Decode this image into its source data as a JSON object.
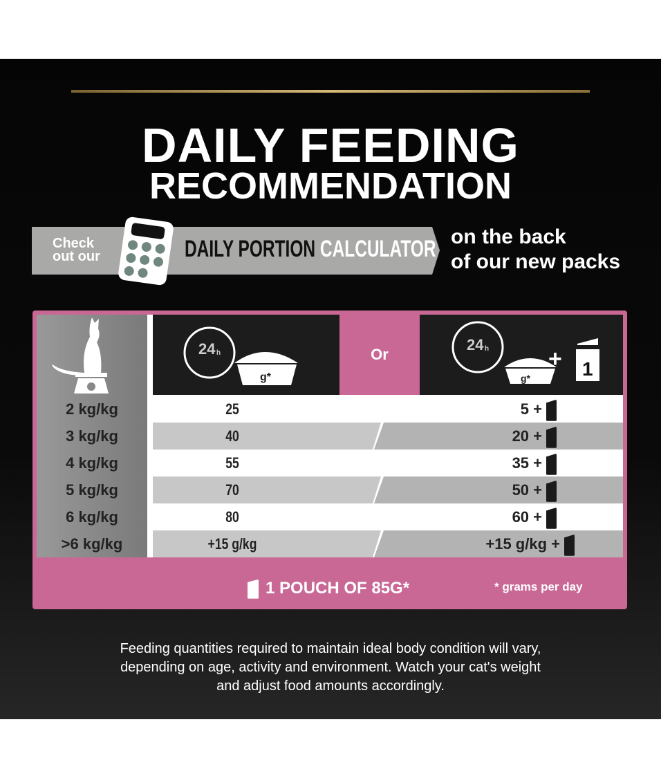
{
  "title": {
    "line1": "DAILY FEEDING",
    "line2": "RECOMMENDATION"
  },
  "banner": {
    "check": "Check",
    "out_our": "out our",
    "daily_portion": "DAILY PORTION",
    "calculator": "CALCULATOR",
    "on_the_back": "on the back",
    "of_packs": "of our new packs",
    "icon": "calculator-icon"
  },
  "table": {
    "header": {
      "or": "Or",
      "icon_left": "24h-clock-bowl-icon",
      "icon_right": "24h-clock-bowl-plus-pouch-icon",
      "grams_label": "g*",
      "hours": "24",
      "h": "h",
      "pouch_count": "1",
      "plus": "+"
    },
    "rows": [
      {
        "weight": "2 kg/kg",
        "dry": "25",
        "combo": "5 +"
      },
      {
        "weight": "3 kg/kg",
        "dry": "40",
        "combo": "20 +"
      },
      {
        "weight": "4 kg/kg",
        "dry": "55",
        "combo": "35 +"
      },
      {
        "weight": "5 kg/kg",
        "dry": "70",
        "combo": "50 +"
      },
      {
        "weight": "6 kg/kg",
        "dry": "80",
        "combo": "60 +"
      },
      {
        "weight": ">6  kg/kg",
        "dry": "+15 g/kg",
        "combo": "+15 g/kg +"
      }
    ],
    "footer": {
      "pouch": "1 POUCH OF 85G*",
      "grams": "* grams per day"
    },
    "colors": {
      "accent": "#c96795"
    }
  },
  "note": {
    "line1": "Feeding quantities required to maintain ideal body condition will vary,",
    "line2": "depending on age, activity and environment. Watch your cat's weight",
    "line3": "and adjust food amounts accordingly."
  }
}
